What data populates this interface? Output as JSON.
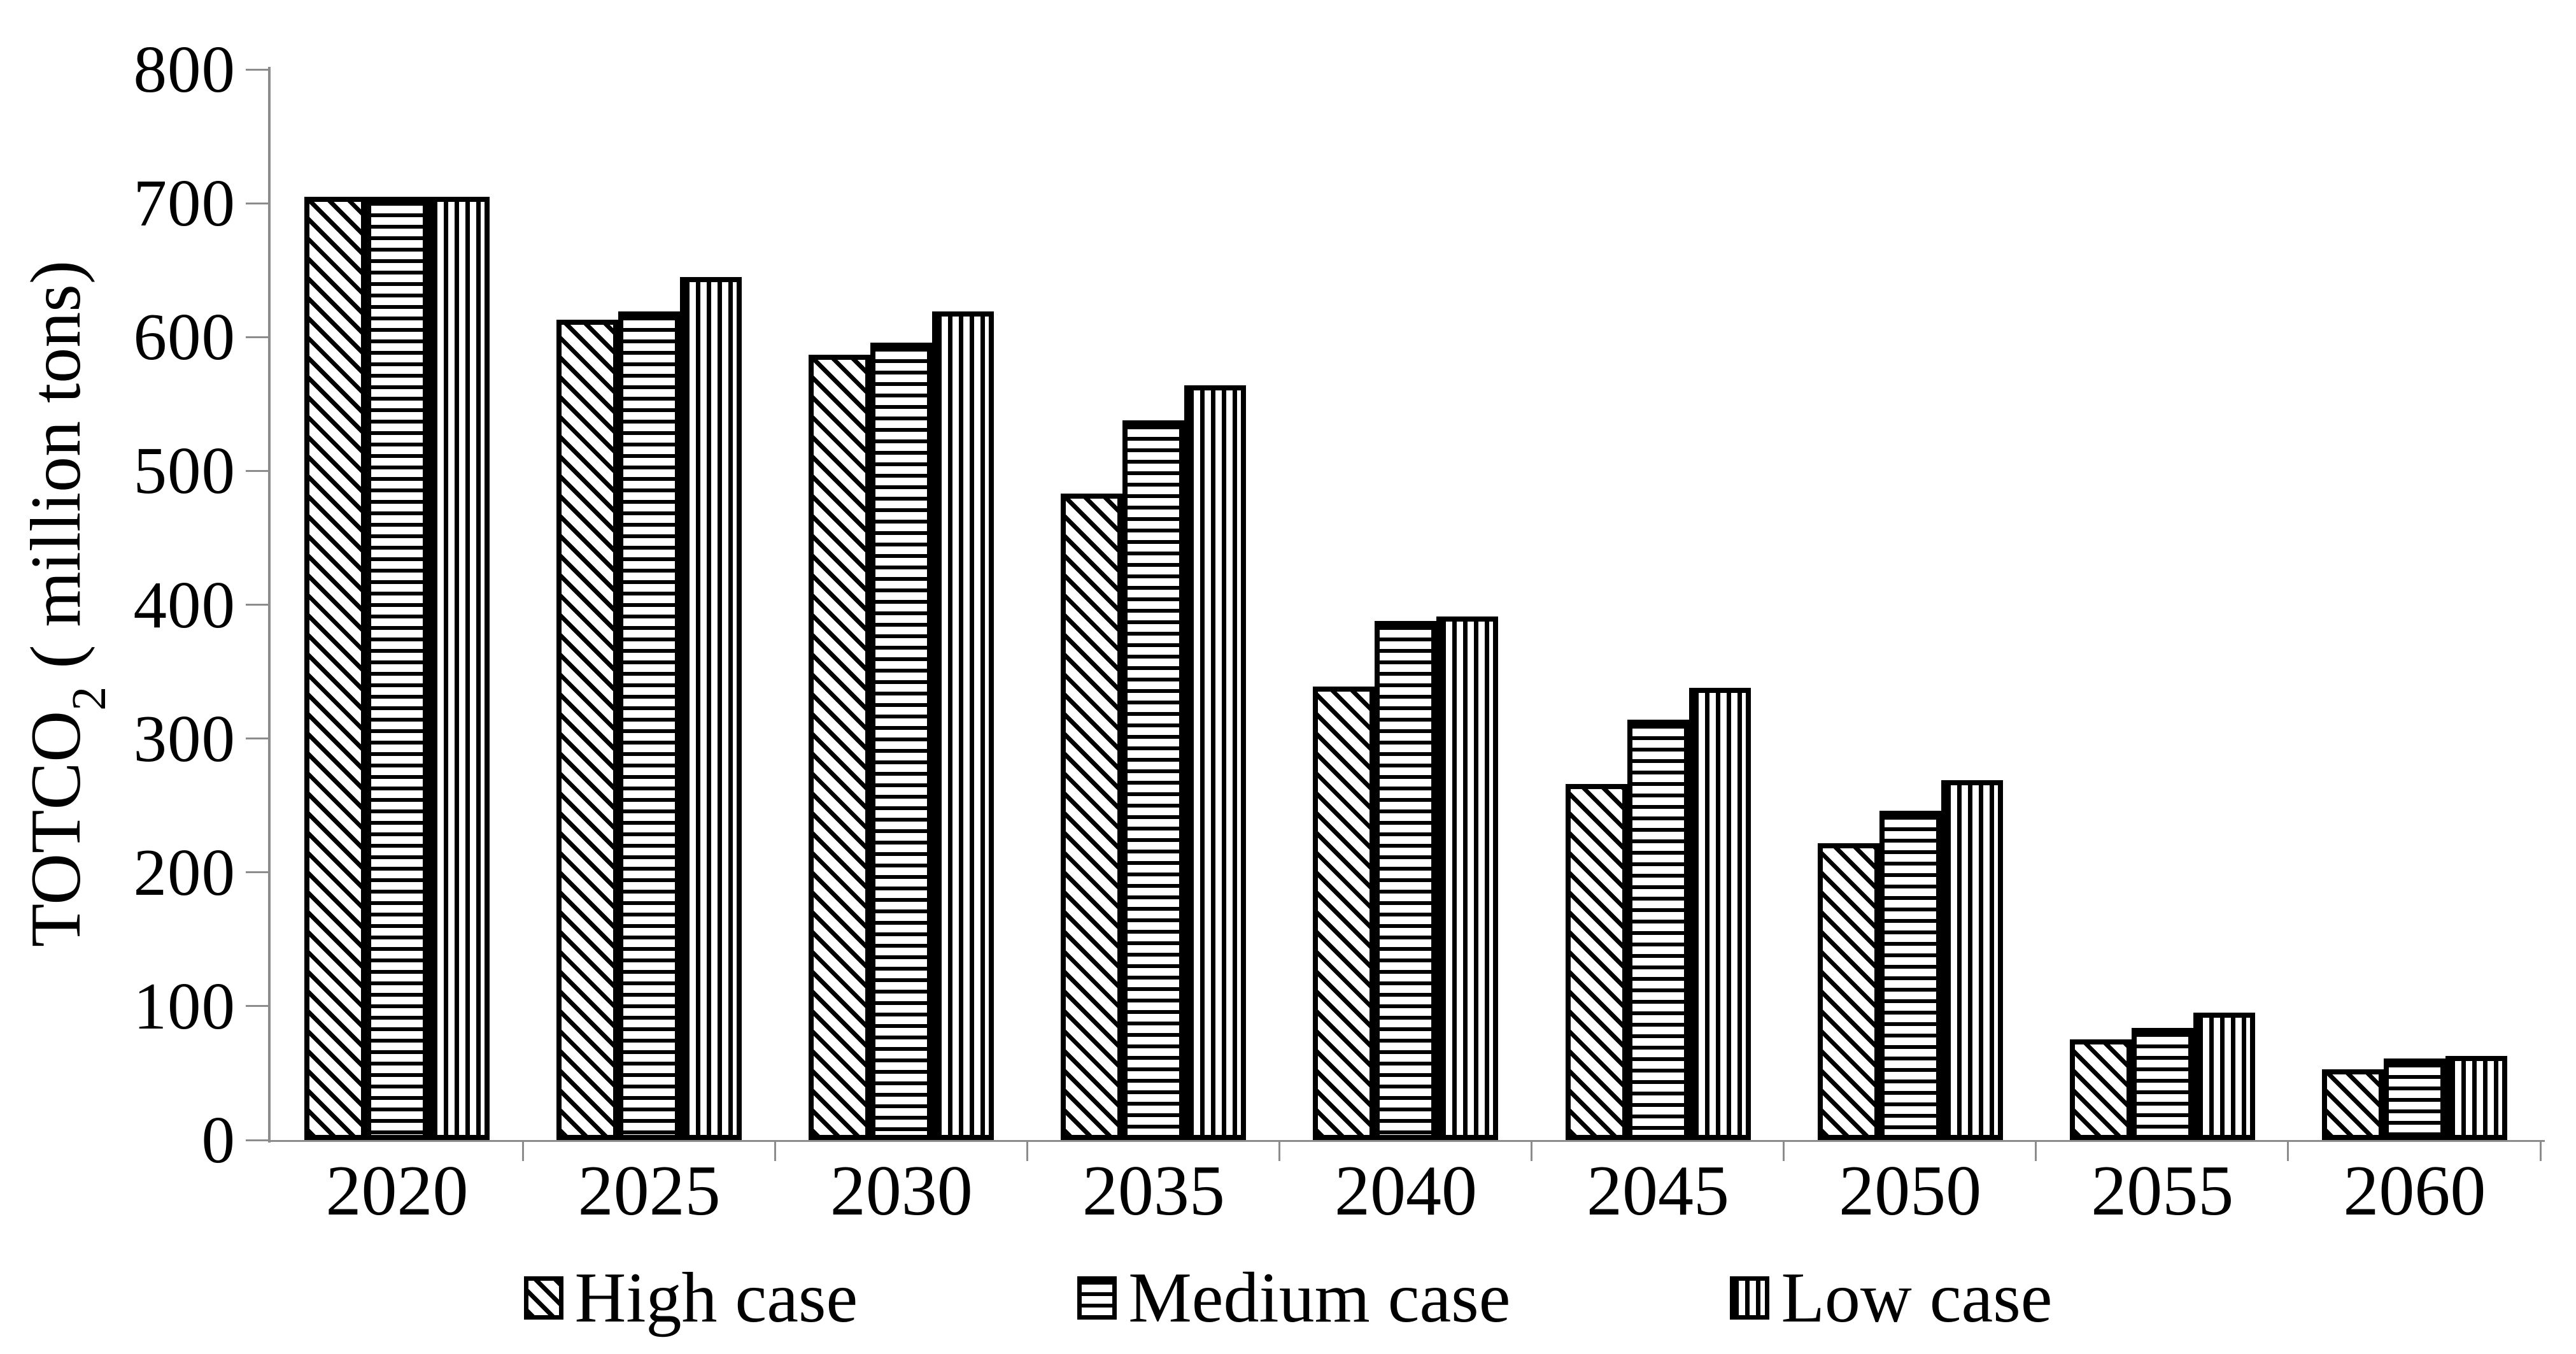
{
  "figure": {
    "background": "#ffffff",
    "axis_color": "#8c8c8c",
    "bar_color": "#000000",
    "y_axis_title": {
      "prefix": "TOTCO",
      "subscript": "2",
      "suffix": " ( million tons)"
    }
  },
  "chart_data": {
    "type": "bar",
    "title": "",
    "xlabel": "",
    "ylabel": "TOTCO2 ( million tons)",
    "ylim": [
      0,
      800
    ],
    "yticks": [
      0,
      100,
      200,
      300,
      400,
      500,
      600,
      700,
      800
    ],
    "grid": false,
    "legend_position": "bottom",
    "categories": [
      "2020",
      "2025",
      "2030",
      "2035",
      "2040",
      "2045",
      "2050",
      "2055",
      "2060"
    ],
    "series": [
      {
        "name": "High case",
        "pattern": "diagonal",
        "values": [
          705,
          613,
          587,
          483,
          339,
          266,
          222,
          75,
          53
        ]
      },
      {
        "name": "Medium case",
        "pattern": "horizontal",
        "values": [
          705,
          619,
          596,
          538,
          388,
          314,
          246,
          84,
          61
        ]
      },
      {
        "name": "Low case",
        "pattern": "vertical",
        "values": [
          705,
          645,
          619,
          564,
          391,
          338,
          269,
          95,
          63
        ]
      }
    ]
  }
}
